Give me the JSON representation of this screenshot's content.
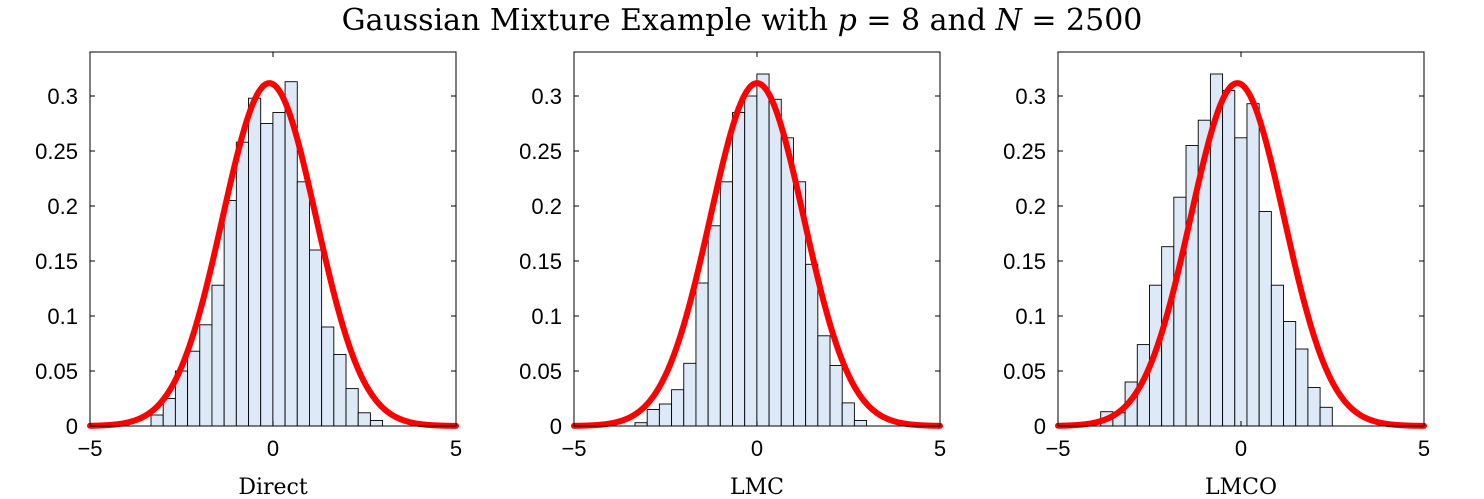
{
  "figure": {
    "title_prefix": "Gaussian Mixture Example with ",
    "title_p_var": "p",
    "title_p_eq": " = 8",
    "title_and": " and ",
    "title_n_var": "N",
    "title_n_eq": " = 2500"
  },
  "colors": {
    "bar_fill": "#dde9f7",
    "bar_edge": "#000000",
    "curve": "#ff0000"
  },
  "chart_data": [
    {
      "type": "bar",
      "xlabel": "Direct",
      "ylabel": "",
      "xlim": [
        -5,
        5
      ],
      "ylim": [
        0,
        0.34
      ],
      "xticks": [
        "-5",
        "0",
        "5"
      ],
      "yticks": [
        "0",
        "0.05",
        "0.1",
        "0.15",
        "0.2",
        "0.25",
        "0.3"
      ],
      "bin_width": 0.333,
      "bin_edges_start": -3.333,
      "values": [
        0.01,
        0.025,
        0.05,
        0.068,
        0.092,
        0.128,
        0.205,
        0.258,
        0.298,
        0.275,
        0.285,
        0.313,
        0.222,
        0.16,
        0.09,
        0.065,
        0.034,
        0.012,
        0.005
      ],
      "overlay": {
        "type": "line",
        "name": "density",
        "mean": -0.1,
        "std": 1.28,
        "color": "#ff0000"
      },
      "grid": false
    },
    {
      "type": "bar",
      "xlabel": "LMC",
      "ylabel": "",
      "xlim": [
        -5,
        5
      ],
      "ylim": [
        0,
        0.34
      ],
      "xticks": [
        "-5",
        "0",
        "5"
      ],
      "yticks": [
        "0",
        "0.05",
        "0.1",
        "0.15",
        "0.2",
        "0.25",
        "0.3"
      ],
      "bin_width": 0.333,
      "bin_edges_start": -3.333,
      "values": [
        0.003,
        0.015,
        0.02,
        0.033,
        0.057,
        0.13,
        0.182,
        0.222,
        0.285,
        0.3,
        0.32,
        0.297,
        0.262,
        0.222,
        0.147,
        0.082,
        0.055,
        0.021,
        0.005
      ],
      "overlay": {
        "type": "line",
        "name": "density",
        "mean": 0.0,
        "std": 1.28,
        "color": "#ff0000"
      },
      "grid": false
    },
    {
      "type": "bar",
      "xlabel": "LMCO",
      "ylabel": "",
      "xlim": [
        -5,
        5
      ],
      "ylim": [
        0,
        0.34
      ],
      "xticks": [
        "-5",
        "0",
        "5"
      ],
      "yticks": [
        "0",
        "0.05",
        "0.1",
        "0.15",
        "0.2",
        "0.25",
        "0.3"
      ],
      "bin_width": 0.333,
      "bin_edges_start": -3.833,
      "values": [
        0.013,
        0.012,
        0.04,
        0.074,
        0.128,
        0.163,
        0.208,
        0.255,
        0.278,
        0.32,
        0.305,
        0.262,
        0.293,
        0.195,
        0.128,
        0.095,
        0.07,
        0.035,
        0.017
      ],
      "overlay": {
        "type": "line",
        "name": "density",
        "mean": -0.1,
        "std": 1.28,
        "color": "#ff0000"
      },
      "grid": false
    }
  ]
}
